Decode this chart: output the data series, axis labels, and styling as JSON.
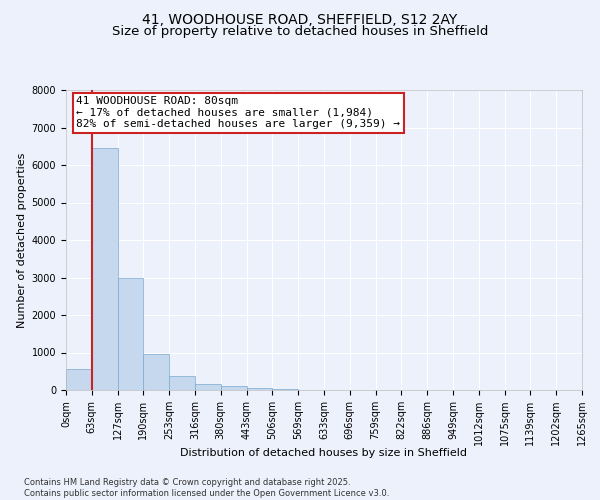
{
  "title_line1": "41, WOODHOUSE ROAD, SHEFFIELD, S12 2AY",
  "title_line2": "Size of property relative to detached houses in Sheffield",
  "xlabel": "Distribution of detached houses by size in Sheffield",
  "ylabel": "Number of detached properties",
  "annotation_title": "41 WOODHOUSE ROAD: 80sqm",
  "annotation_line2": "← 17% of detached houses are smaller (1,984)",
  "annotation_line3": "82% of semi-detached houses are larger (9,359) →",
  "footer_line1": "Contains HM Land Registry data © Crown copyright and database right 2025.",
  "footer_line2": "Contains public sector information licensed under the Open Government Licence v3.0.",
  "bar_values": [
    570,
    6450,
    2980,
    970,
    370,
    170,
    100,
    60,
    15,
    8,
    4,
    2,
    1,
    1,
    0,
    0,
    0,
    0,
    0,
    0
  ],
  "bin_labels": [
    "0sqm",
    "63sqm",
    "127sqm",
    "190sqm",
    "253sqm",
    "316sqm",
    "380sqm",
    "443sqm",
    "506sqm",
    "569sqm",
    "633sqm",
    "696sqm",
    "759sqm",
    "822sqm",
    "886sqm",
    "949sqm",
    "1012sqm",
    "1075sqm",
    "1139sqm",
    "1202sqm",
    "1265sqm"
  ],
  "bar_color": "#c5d8ee",
  "bar_edge_color": "#7aaad0",
  "vline_color": "#cc2222",
  "ylim_max": 8000,
  "yticks": [
    0,
    1000,
    2000,
    3000,
    4000,
    5000,
    6000,
    7000,
    8000
  ],
  "bg_color": "#edf1fb",
  "grid_color": "#ffffff",
  "annotation_border_color": "#cc2222",
  "title_fontsize": 10,
  "subtitle_fontsize": 9.5,
  "axis_label_fontsize": 8,
  "tick_fontsize": 7,
  "annotation_fontsize": 8,
  "ylabel_fontsize": 8
}
